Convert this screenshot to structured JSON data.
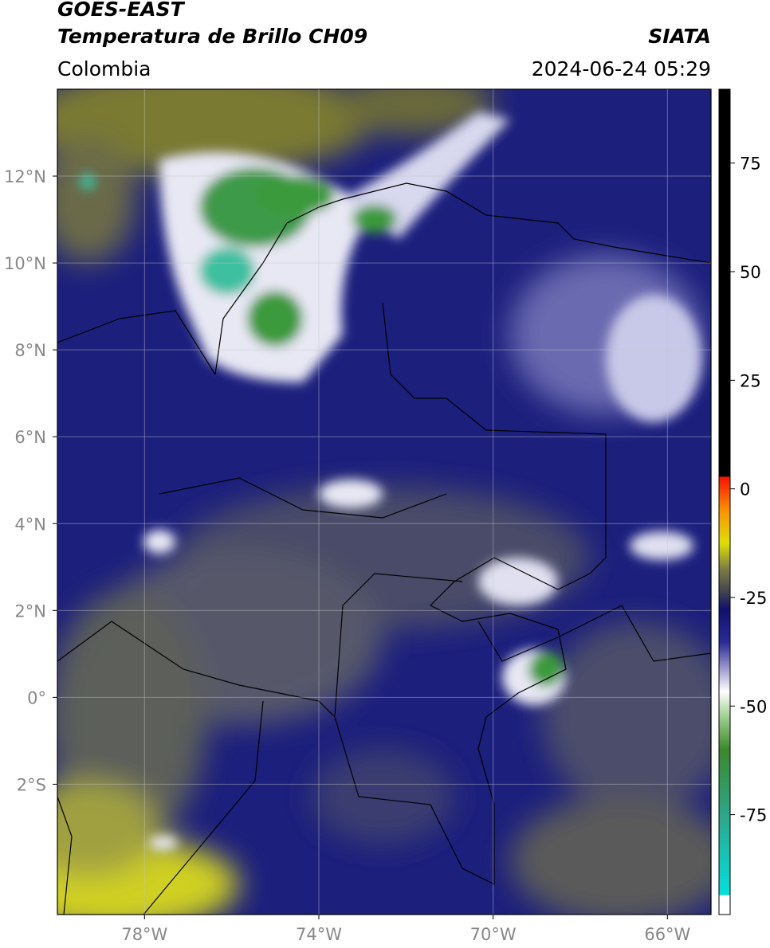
{
  "header": {
    "title": "GOES-EAST",
    "subtitle": "Temperatura de Brillo CH09",
    "source": "SIATA",
    "region": "Colombia",
    "datetime": "2024-06-24 05:29"
  },
  "map": {
    "xlim": [
      -80,
      -65
    ],
    "ylim": [
      -5,
      14
    ],
    "xticks": [
      {
        "value": -78,
        "label": "78°W"
      },
      {
        "value": -74,
        "label": "74°W"
      },
      {
        "value": -70,
        "label": "70°W"
      },
      {
        "value": -66,
        "label": "66°W"
      }
    ],
    "yticks": [
      {
        "value": 12,
        "label": "12°N"
      },
      {
        "value": 10,
        "label": "10°N"
      },
      {
        "value": 8,
        "label": "8°N"
      },
      {
        "value": 6,
        "label": "6°N"
      },
      {
        "value": 4,
        "label": "4°N"
      },
      {
        "value": 2,
        "label": "2°N"
      },
      {
        "value": 0,
        "label": "0°"
      },
      {
        "value": -2,
        "label": "2°S"
      }
    ],
    "grid": true
  },
  "colorbar": {
    "lim": [
      -98,
      92
    ],
    "ticks": [
      75,
      50,
      25,
      0,
      -25,
      -50,
      -75
    ]
  }
}
